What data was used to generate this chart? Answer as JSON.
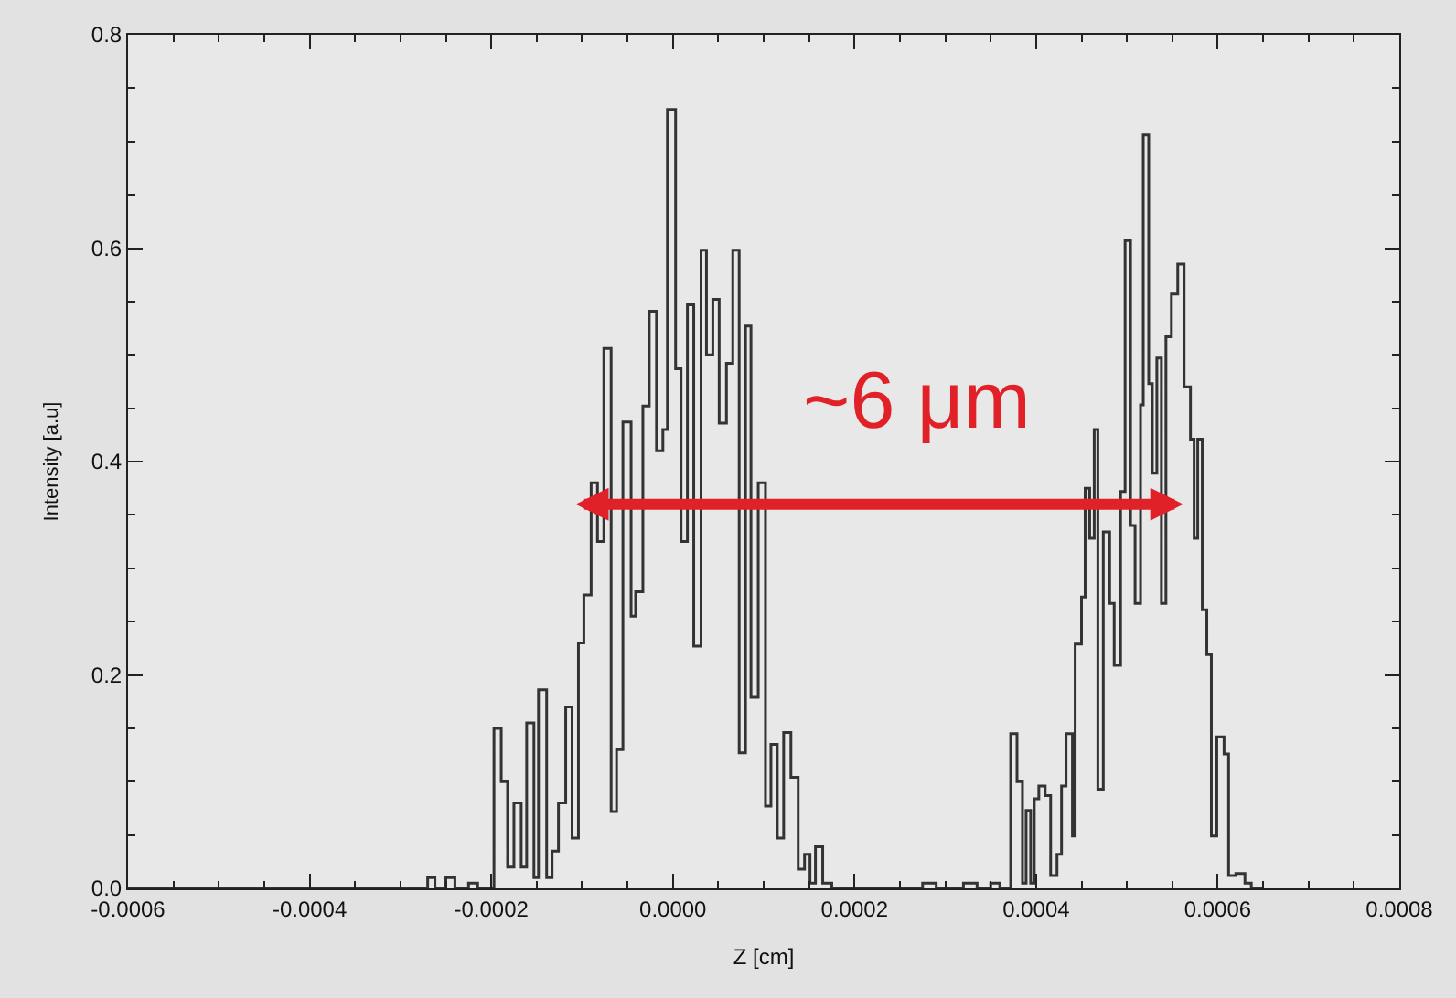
{
  "chart_data": {
    "type": "step",
    "xlabel": "Z [cm]",
    "ylabel": "Intensity [a.u]",
    "xlim": [
      -0.0006,
      0.0008
    ],
    "ylim": [
      0,
      0.8
    ],
    "xticks": [
      {
        "value": -0.0006,
        "label": "-0.0006"
      },
      {
        "value": -0.0004,
        "label": "-0.0004"
      },
      {
        "value": -0.0002,
        "label": "-0.0002"
      },
      {
        "value": 0,
        "label": "0.0000"
      },
      {
        "value": 0.0002,
        "label": "0.0002"
      },
      {
        "value": 0.0004,
        "label": "0.0004"
      },
      {
        "value": 0.0006,
        "label": "0.0006"
      },
      {
        "value": 0.0008,
        "label": "0.0008"
      }
    ],
    "yticks": [
      {
        "value": 0,
        "label": "0.0"
      },
      {
        "value": 0.2,
        "label": "0.2"
      },
      {
        "value": 0.4,
        "label": "0.4"
      },
      {
        "value": 0.6,
        "label": "0.6"
      },
      {
        "value": 0.8,
        "label": "0.8"
      }
    ],
    "grid": false,
    "marker": "none",
    "line_style": "solid",
    "annotations": [
      "~6 μm"
    ],
    "series": [
      {
        "color": "#333333",
        "x": [
          -0.0006,
          -0.00027,
          -0.000262,
          -0.00025,
          -0.00024,
          -0.000225,
          -0.000215,
          -0.000197,
          -0.000189,
          -0.000182,
          -0.000175,
          -0.000167,
          -0.000161,
          -0.000153,
          -0.000148,
          -0.000139,
          -0.000133,
          -0.000126,
          -0.000118,
          -0.000111,
          -0.000104,
          -9.8e-05,
          -9e-05,
          -8.3e-05,
          -7.6e-05,
          -6.8e-05,
          -6.2e-05,
          -5.5e-05,
          -4.6e-05,
          -4.1e-05,
          -3.3e-05,
          -2.6e-05,
          -1.8e-05,
          -1.1e-05,
          -6e-06,
          3e-06,
          9e-06,
          1.6e-05,
          2.3e-05,
          3.1e-05,
          3.7e-05,
          4.4e-05,
          5.1e-05,
          5.9e-05,
          6.6e-05,
          7.3e-05,
          8e-05,
          8.6e-05,
          9.4e-05,
          0.000102,
          0.000108,
          0.000115,
          0.000122,
          0.00013,
          0.000138,
          0.000145,
          0.000151,
          0.000157,
          0.000165,
          0.000175,
          0.000275,
          0.00029,
          0.00032,
          0.000335,
          0.00035,
          0.00036,
          0.000372,
          0.000379,
          0.000385,
          0.000389,
          0.000394,
          0.000398,
          0.000403,
          0.00041,
          0.000416,
          0.000423,
          0.000428,
          0.000433,
          0.00044,
          0.000443,
          0.00045,
          0.000454,
          0.000459,
          0.000464,
          0.000468,
          0.000474,
          0.000481,
          0.000486,
          0.000493,
          0.000498,
          0.000504,
          0.000509,
          0.000515,
          0.000518,
          0.000524,
          0.000528,
          0.000533,
          0.000538,
          0.000543,
          0.000549,
          0.000556,
          0.000563,
          0.00057,
          0.000574,
          0.000578,
          0.000583,
          0.000588,
          0.000593,
          0.000599,
          0.000607,
          0.000612,
          0.00062,
          0.00063,
          0.000637,
          0.00065
        ],
        "values": [
          0,
          0.01,
          0,
          0.01,
          0,
          0.005,
          0,
          0.15,
          0.1,
          0.02,
          0.08,
          0.02,
          0.155,
          0.01,
          0.186,
          0.01,
          0.035,
          0.08,
          0.17,
          0.047,
          0.23,
          0.275,
          0.38,
          0.325,
          0.506,
          0.072,
          0.13,
          0.437,
          0.255,
          0.278,
          0.452,
          0.541,
          0.41,
          0.43,
          0.73,
          0.487,
          0.325,
          0.547,
          0.227,
          0.598,
          0.5,
          0.552,
          0.436,
          0.492,
          0.598,
          0.127,
          0.527,
          0.179,
          0.38,
          0.077,
          0.135,
          0.047,
          0.146,
          0.104,
          0.018,
          0.032,
          0.005,
          0.039,
          0.005,
          0,
          0.005,
          0,
          0.005,
          0,
          0.005,
          0,
          0.145,
          0.1,
          0.005,
          0.073,
          0.005,
          0.084,
          0.096,
          0.087,
          0.012,
          0.032,
          0.096,
          0.145,
          0.049,
          0.229,
          0.273,
          0.375,
          0.328,
          0.43,
          0.093,
          0.334,
          0.267,
          0.209,
          0.372,
          0.607,
          0.34,
          0.267,
          0.453,
          0.706,
          0.473,
          0.389,
          0.497,
          0.267,
          0.517,
          0.557,
          0.585,
          0.47,
          0.421,
          0.328,
          0.421,
          0.261,
          0.219,
          0.049,
          0.142,
          0.126,
          0.012,
          0.014,
          0.005,
          0,
          0
        ]
      }
    ]
  }
}
